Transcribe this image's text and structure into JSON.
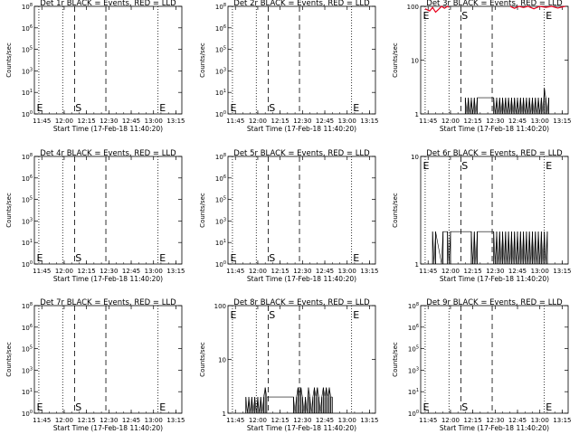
{
  "figure": {
    "colors": {
      "events": "#000000",
      "lld": "#e8001c",
      "frame": "#000000",
      "background": "#ffffff"
    },
    "xtick_labels": [
      "11:45",
      "12:00",
      "12:15",
      "12:30",
      "12:45",
      "13:00",
      "13:15"
    ],
    "xlabel": "Start Time (17-Feb-18 11:40:20)",
    "ylabel": "Counts/sec"
  },
  "chart_data": [
    {
      "type": "line",
      "title": "Det 1r BLACK = Events, RED = LLD",
      "yscale": "log",
      "ylim": [
        1,
        100000000
      ],
      "ytick_labels": [
        "10^0",
        "10^1",
        "10^3",
        "10^5",
        "10^6",
        "10^8"
      ],
      "xlim_min": [
        0,
        99
      ],
      "dotted_lines_min": [
        3,
        19,
        83
      ],
      "dashed_lines_min": [
        27,
        48
      ],
      "markers": [
        {
          "label": "E",
          "t": 1.5
        },
        {
          "label": "S",
          "t": 27.5
        },
        {
          "label": "E",
          "t": 84
        }
      ],
      "series": []
    },
    {
      "type": "line",
      "title": "Det 2r BLACK = Events, RED = LLD",
      "yscale": "log",
      "ylim": [
        1,
        100000000
      ],
      "ytick_labels": [
        "10^0",
        "10^1",
        "10^3",
        "10^5",
        "10^6",
        "10^8"
      ],
      "xlim_min": [
        0,
        99
      ],
      "dotted_lines_min": [
        3,
        19,
        83
      ],
      "dashed_lines_min": [
        27,
        48
      ],
      "markers": [
        {
          "label": "E",
          "t": 1.5
        },
        {
          "label": "S",
          "t": 27.5
        },
        {
          "label": "E",
          "t": 84
        }
      ],
      "series": []
    },
    {
      "type": "line",
      "title": "Det 3r BLACK = Events, RED = LLD",
      "yscale": "log",
      "ylim": [
        1,
        100
      ],
      "ytick_labels": [
        "1",
        "10",
        "100"
      ],
      "xlim_min": [
        0,
        99
      ],
      "dotted_lines_min": [
        3,
        19,
        83
      ],
      "dashed_lines_min": [
        27,
        48
      ],
      "markers": [
        {
          "label": "E",
          "t": 1.5
        },
        {
          "label": "S",
          "t": 27.5
        },
        {
          "label": "E",
          "t": 84
        }
      ],
      "series": [
        {
          "key": "lld",
          "points": [
            [
              3,
              90
            ],
            [
              6,
              82
            ],
            [
              8,
              95
            ],
            [
              10,
              78
            ],
            [
              12,
              88
            ],
            [
              14,
              100
            ],
            [
              16,
              92
            ],
            [
              18,
              100
            ],
            [
              19,
              96
            ]
          ]
        },
        {
          "key": "lld",
          "points": [
            [
              60,
              100
            ],
            [
              63,
              92
            ],
            [
              66,
              100
            ],
            [
              69,
              95
            ],
            [
              72,
              100
            ],
            [
              76,
              90
            ],
            [
              80,
              100
            ],
            [
              84,
              96
            ],
            [
              88,
              100
            ],
            [
              92,
              93
            ],
            [
              97,
              100
            ]
          ]
        },
        {
          "key": "events",
          "spikes": [
            [
              30,
              2
            ],
            [
              31,
              1
            ],
            [
              32,
              2
            ],
            [
              33,
              1
            ],
            [
              34,
              2
            ],
            [
              35,
              1
            ],
            [
              36,
              2
            ],
            [
              37,
              1
            ],
            [
              38,
              2
            ],
            [
              49,
              2
            ],
            [
              50,
              1
            ],
            [
              51,
              2
            ],
            [
              52,
              1
            ],
            [
              53,
              2
            ],
            [
              54,
              1
            ],
            [
              55,
              2
            ],
            [
              56,
              1
            ],
            [
              57,
              2
            ],
            [
              58,
              1
            ],
            [
              59,
              2
            ],
            [
              60,
              1
            ],
            [
              61,
              2
            ],
            [
              62,
              1
            ],
            [
              63,
              2
            ],
            [
              64,
              1
            ],
            [
              65,
              2
            ],
            [
              66,
              1
            ],
            [
              67,
              2
            ],
            [
              68,
              1
            ],
            [
              69,
              2
            ],
            [
              70,
              1
            ],
            [
              71,
              2
            ],
            [
              72,
              1
            ],
            [
              73,
              2
            ],
            [
              74,
              1
            ],
            [
              75,
              2
            ],
            [
              76,
              1
            ],
            [
              77,
              2
            ],
            [
              78,
              1
            ],
            [
              79,
              2
            ],
            [
              80,
              1
            ],
            [
              81,
              2
            ],
            [
              82,
              1
            ],
            [
              83,
              3
            ],
            [
              84,
              2
            ],
            [
              85,
              1
            ],
            [
              86,
              2
            ]
          ]
        }
      ]
    },
    {
      "type": "line",
      "title": "Det 4r BLACK = Events, RED = LLD",
      "yscale": "log",
      "ylim": [
        1,
        100000000
      ],
      "ytick_labels": [
        "10^0",
        "10^1",
        "10^3",
        "10^5",
        "10^6",
        "10^8"
      ],
      "xlim_min": [
        0,
        99
      ],
      "dotted_lines_min": [
        3,
        19,
        83
      ],
      "dashed_lines_min": [
        27,
        48
      ],
      "markers": [
        {
          "label": "E",
          "t": 1.5
        },
        {
          "label": "S",
          "t": 27.5
        },
        {
          "label": "E",
          "t": 84
        }
      ],
      "series": []
    },
    {
      "type": "line",
      "title": "Det 5r BLACK = Events, RED = LLD",
      "yscale": "log",
      "ylim": [
        1,
        100000000
      ],
      "ytick_labels": [
        "10^0",
        "10^1",
        "10^3",
        "10^5",
        "10^6",
        "10^8"
      ],
      "xlim_min": [
        0,
        99
      ],
      "dotted_lines_min": [
        3,
        19,
        83
      ],
      "dashed_lines_min": [
        27,
        48
      ],
      "markers": [
        {
          "label": "E",
          "t": 1.5
        },
        {
          "label": "S",
          "t": 27.5
        },
        {
          "label": "E",
          "t": 84
        }
      ],
      "series": []
    },
    {
      "type": "line",
      "title": "Det 6r BLACK = Events, RED = LLD",
      "yscale": "log",
      "ylim": [
        1,
        10
      ],
      "ytick_labels": [
        "1",
        "10"
      ],
      "xlim_min": [
        0,
        99
      ],
      "dotted_lines_min": [
        3,
        19,
        83
      ],
      "dashed_lines_min": [
        27,
        48
      ],
      "markers": [
        {
          "label": "E",
          "t": 1.5
        },
        {
          "label": "S",
          "t": 27.5
        },
        {
          "label": "E",
          "t": 84
        }
      ],
      "series": [
        {
          "key": "events",
          "spikes": [
            [
              8,
              2
            ],
            [
              9,
              1
            ],
            [
              10,
              2
            ],
            [
              14,
              1
            ],
            [
              15,
              2
            ],
            [
              18,
              2
            ],
            [
              19,
              1
            ],
            [
              20,
              2
            ],
            [
              34,
              2
            ],
            [
              35,
              1
            ],
            [
              36,
              2
            ],
            [
              37,
              1
            ],
            [
              38,
              2
            ],
            [
              49,
              2
            ],
            [
              50,
              1
            ],
            [
              51,
              2
            ],
            [
              52,
              1
            ],
            [
              53,
              2
            ],
            [
              54,
              1
            ],
            [
              55,
              2
            ],
            [
              56,
              1
            ],
            [
              57,
              2
            ],
            [
              58,
              1
            ],
            [
              59,
              2
            ],
            [
              60,
              1
            ],
            [
              61,
              2
            ],
            [
              62,
              1
            ],
            [
              63,
              2
            ],
            [
              64,
              1
            ],
            [
              65,
              2
            ],
            [
              66,
              1
            ],
            [
              67,
              2
            ],
            [
              68,
              1
            ],
            [
              69,
              2
            ],
            [
              70,
              1
            ],
            [
              71,
              2
            ],
            [
              72,
              1
            ],
            [
              73,
              2
            ],
            [
              74,
              1
            ],
            [
              75,
              2
            ],
            [
              76,
              1
            ],
            [
              77,
              2
            ],
            [
              78,
              1
            ],
            [
              79,
              2
            ],
            [
              80,
              1
            ],
            [
              81,
              2
            ],
            [
              82,
              1
            ],
            [
              83,
              2
            ],
            [
              84,
              1
            ],
            [
              85,
              2
            ]
          ]
        }
      ]
    },
    {
      "type": "line",
      "title": "Det 7r BLACK = Events, RED = LLD",
      "yscale": "log",
      "ylim": [
        1,
        100000000
      ],
      "ytick_labels": [
        "10^0",
        "10^1",
        "10^3",
        "10^5",
        "10^6",
        "10^8"
      ],
      "xlim_min": [
        0,
        99
      ],
      "dotted_lines_min": [
        3,
        19,
        83
      ],
      "dashed_lines_min": [
        27,
        48
      ],
      "markers": [
        {
          "label": "E",
          "t": 1.5
        },
        {
          "label": "S",
          "t": 27.5
        },
        {
          "label": "E",
          "t": 84
        }
      ],
      "series": []
    },
    {
      "type": "line",
      "title": "Det 8r BLACK = Events, RED = LLD",
      "yscale": "log",
      "ylim": [
        1,
        100
      ],
      "ytick_labels": [
        "1",
        "10",
        "100"
      ],
      "xlim_min": [
        0,
        99
      ],
      "dotted_lines_min": [
        3,
        19,
        83
      ],
      "dashed_lines_min": [
        27,
        48
      ],
      "markers": [
        {
          "label": "E",
          "t": 1.5
        },
        {
          "label": "S",
          "t": 27.5
        },
        {
          "label": "E",
          "t": 84
        }
      ],
      "series": [
        {
          "key": "events",
          "spikes": [
            [
              12,
              2
            ],
            [
              13,
              1
            ],
            [
              14,
              2
            ],
            [
              15,
              1
            ],
            [
              16,
              2
            ],
            [
              17,
              1
            ],
            [
              18,
              2
            ],
            [
              19,
              1
            ],
            [
              20,
              2
            ],
            [
              21,
              1
            ],
            [
              22,
              2
            ],
            [
              23,
              1
            ],
            [
              24,
              2
            ],
            [
              25,
              3
            ],
            [
              26,
              2
            ],
            [
              44,
              2
            ],
            [
              45,
              1
            ],
            [
              46,
              2
            ],
            [
              47,
              3
            ],
            [
              48,
              2
            ],
            [
              49,
              3
            ],
            [
              50,
              2
            ],
            [
              51,
              1
            ],
            [
              52,
              2
            ],
            [
              53,
              1
            ],
            [
              54,
              3
            ],
            [
              55,
              2
            ],
            [
              56,
              1
            ],
            [
              57,
              2
            ],
            [
              58,
              3
            ],
            [
              59,
              2
            ],
            [
              60,
              3
            ],
            [
              61,
              2
            ],
            [
              62,
              1
            ],
            [
              63,
              2
            ],
            [
              64,
              3
            ],
            [
              65,
              2
            ],
            [
              66,
              3
            ],
            [
              67,
              2
            ],
            [
              68,
              3
            ],
            [
              69,
              2
            ],
            [
              70,
              2
            ]
          ]
        }
      ]
    },
    {
      "type": "line",
      "title": "Det 9r BLACK = Events, RED = LLD",
      "yscale": "log",
      "ylim": [
        1,
        100000000
      ],
      "ytick_labels": [
        "10^0",
        "10^1",
        "10^3",
        "10^5",
        "10^6",
        "10^8"
      ],
      "xlim_min": [
        0,
        99
      ],
      "dotted_lines_min": [
        3,
        19,
        83
      ],
      "dashed_lines_min": [
        27,
        48
      ],
      "markers": [
        {
          "label": "E",
          "t": 1.5
        },
        {
          "label": "S",
          "t": 27.5
        },
        {
          "label": "E",
          "t": 84
        }
      ],
      "series": []
    }
  ]
}
